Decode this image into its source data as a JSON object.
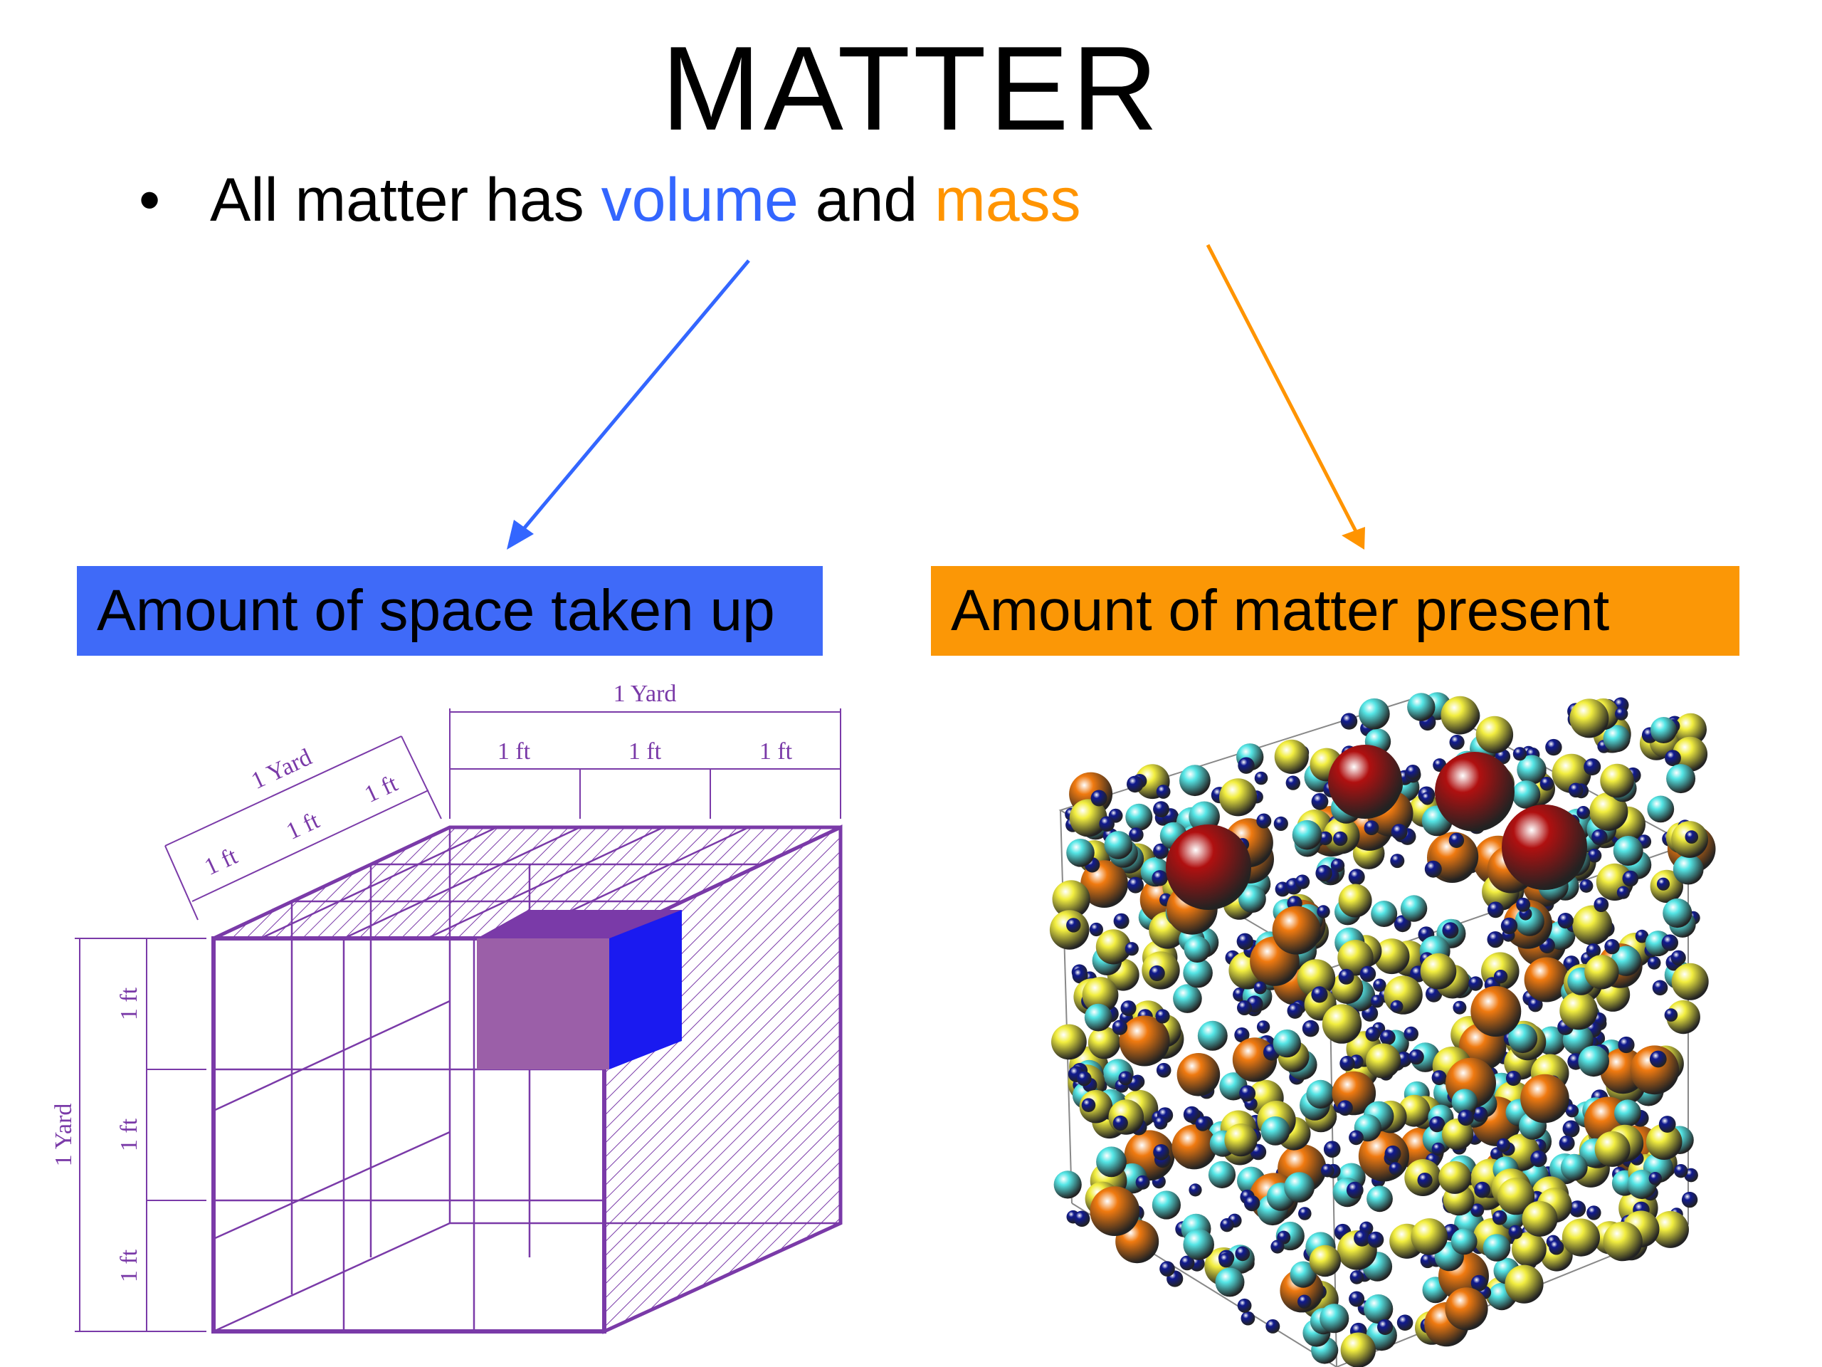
{
  "slide": {
    "title": "MATTER",
    "bullet": {
      "marker": "•",
      "text_before": "All matter has ",
      "volume_word": "volume",
      "text_middle": " and ",
      "mass_word": "mass"
    }
  },
  "volume_panel": {
    "label": "Amount of space taken up",
    "color": "#3f6af8",
    "diagram_labels": {
      "top_yard": "1 Yard",
      "top_ft_1": "1 ft",
      "top_ft_2": "1 ft",
      "top_ft_3": "1 ft",
      "depth_yard": "1 Yard",
      "depth_ft_1": "1 ft",
      "depth_ft_2": "1 ft",
      "depth_ft_3": "1 ft",
      "side_yard": "1 Yard",
      "side_ft_1": "1 ft",
      "side_ft_2": "1 ft",
      "side_ft_3": "1 ft"
    }
  },
  "mass_panel": {
    "label": "Amount of matter present",
    "color": "#fb9706"
  },
  "arrows": {
    "volume_arrow_color": "#3366ff",
    "mass_arrow_color": "#ff9400"
  },
  "sphere_colors": {
    "red": "#b01010",
    "orange": "#f07a10",
    "yellow": "#f2ee40",
    "cyan": "#55e6e6",
    "navy": "#101a90"
  }
}
